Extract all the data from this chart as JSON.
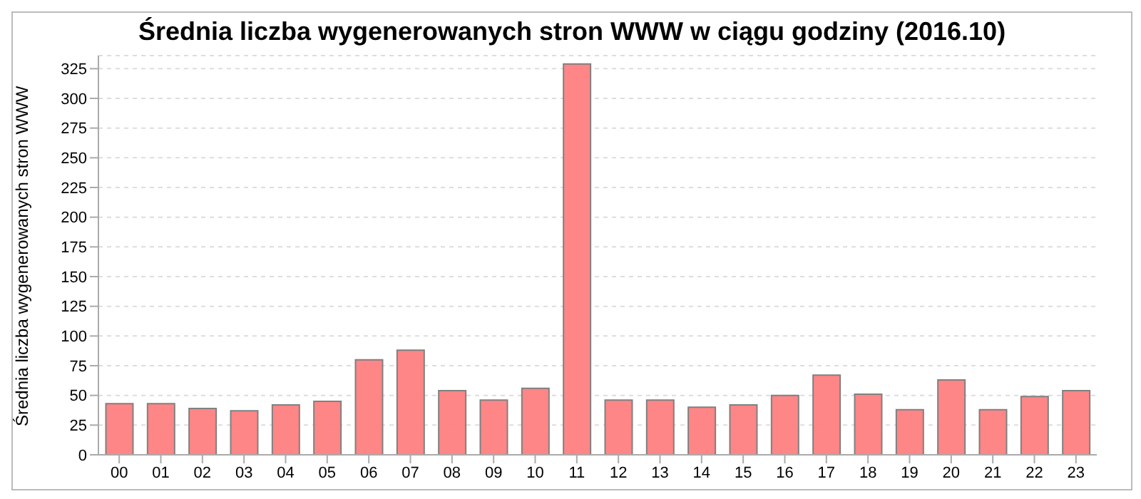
{
  "chart_data": {
    "type": "bar",
    "title": "Średnia liczba wygenerowanych stron WWW w ciągu godziny (2016.10)",
    "ylabel": "Średnia liczba wygenerowanych stron WWW",
    "categories": [
      "00",
      "01",
      "02",
      "03",
      "04",
      "05",
      "06",
      "07",
      "08",
      "09",
      "10",
      "11",
      "12",
      "13",
      "14",
      "15",
      "16",
      "17",
      "18",
      "19",
      "20",
      "21",
      "22",
      "23"
    ],
    "values": [
      43,
      43,
      39,
      37,
      42,
      45,
      80,
      88,
      54,
      46,
      56,
      329,
      46,
      46,
      40,
      42,
      50,
      67,
      51,
      38,
      63,
      38,
      49,
      54
    ],
    "color": "#ff7f7f",
    "ylim": [
      0,
      336
    ],
    "yticks": [
      0,
      25,
      50,
      75,
      100,
      125,
      150,
      175,
      200,
      225,
      250,
      275,
      300,
      325
    ],
    "grid": "y"
  }
}
